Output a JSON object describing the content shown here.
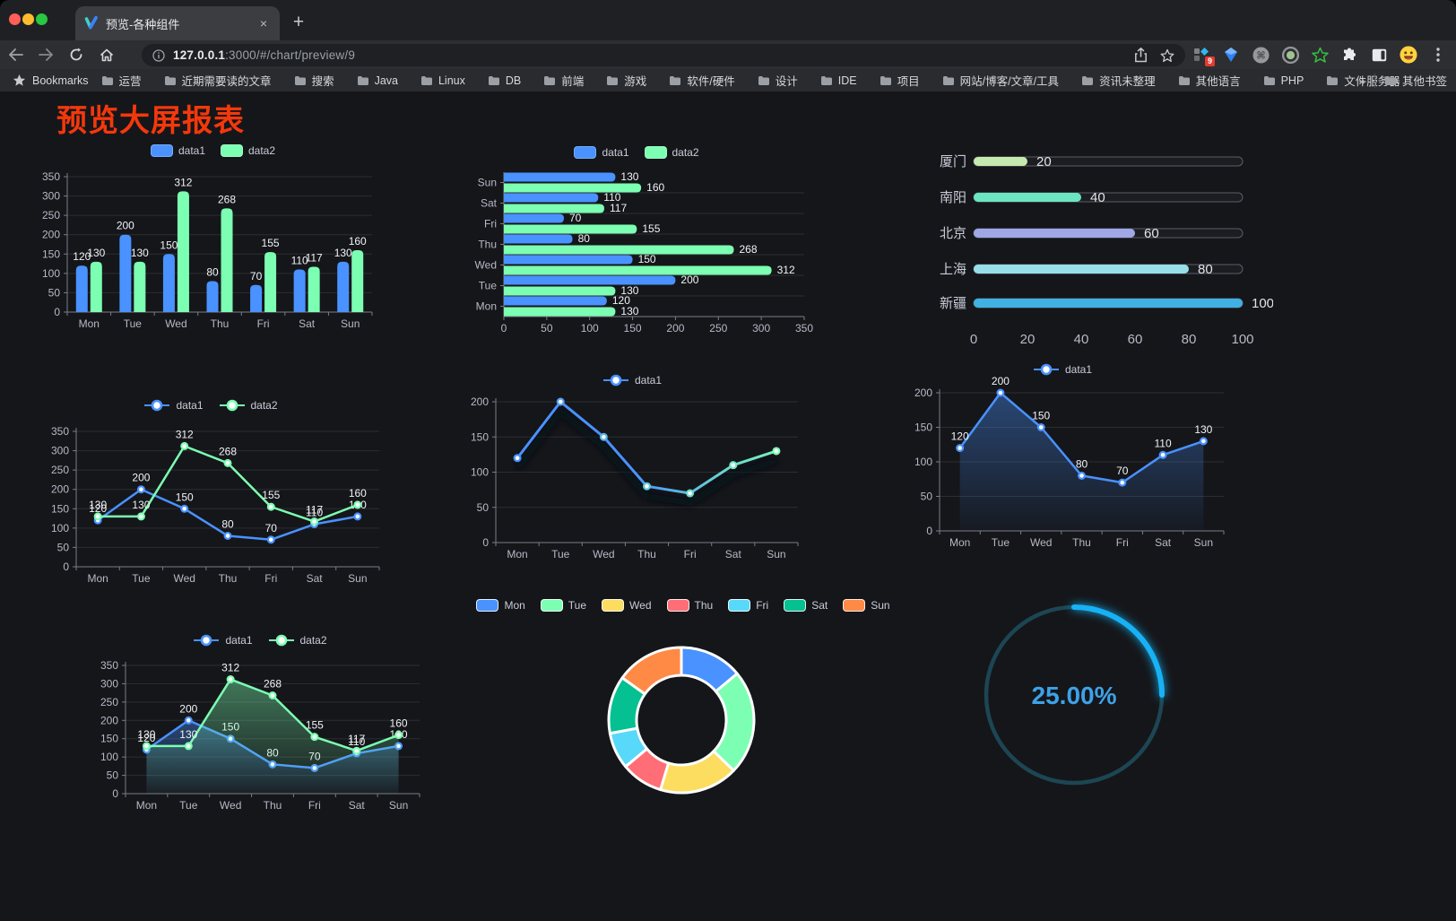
{
  "browser": {
    "tab": {
      "title": "预览-各种组件",
      "close": "×"
    },
    "new_tab_button": "+",
    "address_bar": {
      "host": "127.0.0.1",
      "path": ":3000/#/chart/preview/9"
    },
    "extensions_badge": "9",
    "bookmarks_bar": {
      "star_label": "Bookmarks",
      "items": [
        "运营",
        "近期需要读的文章",
        "搜索",
        "Java",
        "Linux",
        "DB",
        "前端",
        "游戏",
        "软件/硬件",
        "设计",
        "IDE",
        "项目",
        "网站/博客/文章/工具",
        "资讯未整理",
        "其他语言",
        "PHP",
        "文件服务器"
      ],
      "overflow": "»",
      "other_bookmarks": "其他书签"
    }
  },
  "page": {
    "title": "预览大屏报表"
  },
  "chart_data": [
    {
      "id": "grouped-bar",
      "type": "bar",
      "orientation": "vertical",
      "categories": [
        "Mon",
        "Tue",
        "Wed",
        "Thu",
        "Fri",
        "Sat",
        "Sun"
      ],
      "series": [
        {
          "name": "data1",
          "color": "#4992ff",
          "values": [
            120,
            200,
            150,
            80,
            70,
            110,
            130
          ]
        },
        {
          "name": "data2",
          "color": "#7cffb2",
          "values": [
            130,
            130,
            312,
            268,
            155,
            117,
            160
          ]
        }
      ],
      "ylim": [
        0,
        350
      ],
      "yticks": [
        0,
        50,
        100,
        150,
        200,
        250,
        300,
        350
      ],
      "grid": true,
      "legend_position": "top",
      "value_labels": true
    },
    {
      "id": "grouped-hbar",
      "type": "bar",
      "orientation": "horizontal",
      "categories": [
        "Mon",
        "Tue",
        "Wed",
        "Thu",
        "Fri",
        "Sat",
        "Sun"
      ],
      "series": [
        {
          "name": "data1",
          "color": "#4992ff",
          "values": [
            120,
            200,
            150,
            80,
            70,
            110,
            130
          ]
        },
        {
          "name": "data2",
          "color": "#7cffb2",
          "values": [
            130,
            130,
            312,
            268,
            155,
            117,
            160
          ]
        }
      ],
      "xlim": [
        0,
        350
      ],
      "xticks": [
        0,
        50,
        100,
        150,
        200,
        250,
        300,
        350
      ],
      "grid": true,
      "legend_position": "top",
      "value_labels": true
    },
    {
      "id": "city-progress-bars",
      "type": "bar",
      "subtype": "progress",
      "categories": [
        "厦门",
        "南阳",
        "北京",
        "上海",
        "新疆"
      ],
      "values": [
        20,
        40,
        60,
        80,
        100
      ],
      "colors": [
        "#c4ebad",
        "#6be6c1",
        "#a0a7e6",
        "#96dee8",
        "#3fb1e3"
      ],
      "xlim": [
        0,
        100
      ],
      "xticks": [
        0,
        20,
        40,
        60,
        80,
        100
      ],
      "value_labels": true
    },
    {
      "id": "line-two-series",
      "type": "line",
      "categories": [
        "Mon",
        "Tue",
        "Wed",
        "Thu",
        "Fri",
        "Sat",
        "Sun"
      ],
      "series": [
        {
          "name": "data1",
          "color": "#4992ff",
          "values": [
            120,
            200,
            150,
            80,
            70,
            110,
            130
          ]
        },
        {
          "name": "data2",
          "color": "#7cffb2",
          "values": [
            130,
            130,
            312,
            268,
            155,
            117,
            160
          ]
        }
      ],
      "ylim": [
        0,
        350
      ],
      "yticks": [
        0,
        50,
        100,
        150,
        200,
        250,
        300,
        350
      ],
      "grid": true,
      "legend_position": "top",
      "value_labels": true
    },
    {
      "id": "gradient-line",
      "type": "line",
      "categories": [
        "Mon",
        "Tue",
        "Wed",
        "Thu",
        "Fri",
        "Sat",
        "Sun"
      ],
      "series": [
        {
          "name": "data1",
          "color": "#4992ff",
          "gradient": [
            "#4992ff",
            "#7cffb2"
          ],
          "values": [
            120,
            200,
            150,
            80,
            70,
            110,
            130
          ]
        }
      ],
      "ylim": [
        0,
        200
      ],
      "yticks": [
        0,
        50,
        100,
        150,
        200
      ],
      "grid": true,
      "legend_position": "top",
      "value_labels": false,
      "shadow": true
    },
    {
      "id": "area-line",
      "type": "line",
      "categories": [
        "Mon",
        "Tue",
        "Wed",
        "Thu",
        "Fri",
        "Sat",
        "Sun"
      ],
      "series": [
        {
          "name": "data1",
          "color": "#4992ff",
          "area": true,
          "values": [
            120,
            200,
            150,
            80,
            70,
            110,
            130
          ]
        }
      ],
      "ylim": [
        0,
        200
      ],
      "yticks": [
        0,
        50,
        100,
        150,
        200
      ],
      "grid": true,
      "legend_position": "top",
      "value_labels": true
    },
    {
      "id": "two-series-area-line",
      "type": "line",
      "categories": [
        "Mon",
        "Tue",
        "Wed",
        "Thu",
        "Fri",
        "Sat",
        "Sun"
      ],
      "series": [
        {
          "name": "data1",
          "color": "#4992ff",
          "area": true,
          "values": [
            120,
            200,
            150,
            80,
            70,
            110,
            130
          ]
        },
        {
          "name": "data2",
          "color": "#7cffb2",
          "area": true,
          "values": [
            130,
            130,
            312,
            268,
            155,
            117,
            160
          ]
        }
      ],
      "ylim": [
        0,
        350
      ],
      "yticks": [
        0,
        50,
        100,
        150,
        200,
        250,
        300,
        350
      ],
      "grid": true,
      "legend_position": "top",
      "value_labels": true
    },
    {
      "id": "weekday-donut",
      "type": "pie",
      "categories": [
        "Mon",
        "Tue",
        "Wed",
        "Thu",
        "Fri",
        "Sat",
        "Sun"
      ],
      "values": [
        120,
        200,
        150,
        80,
        70,
        110,
        130
      ],
      "colors": [
        "#4992ff",
        "#7cffb2",
        "#fddd60",
        "#ff6e76",
        "#58d9f9",
        "#05c091",
        "#ff8a45"
      ],
      "donut": true,
      "legend_position": "top"
    },
    {
      "id": "percent-gauge",
      "type": "gauge",
      "value": 25,
      "max": 100,
      "label": "25.00%",
      "progress_color": "#19b2f5",
      "track_color": "#1c4653",
      "text_color": "#3da2e8"
    }
  ],
  "theme": {
    "axis_label_color": "#b7b9c6",
    "axis_line_color": "#787d88",
    "grid_line_color": "rgba(255,255,255,0.10)",
    "value_label_color": "#f2f3f6",
    "legend_text_color": "#c9ccd8",
    "page_background": "#15161a",
    "title_color": "#f4380b"
  }
}
